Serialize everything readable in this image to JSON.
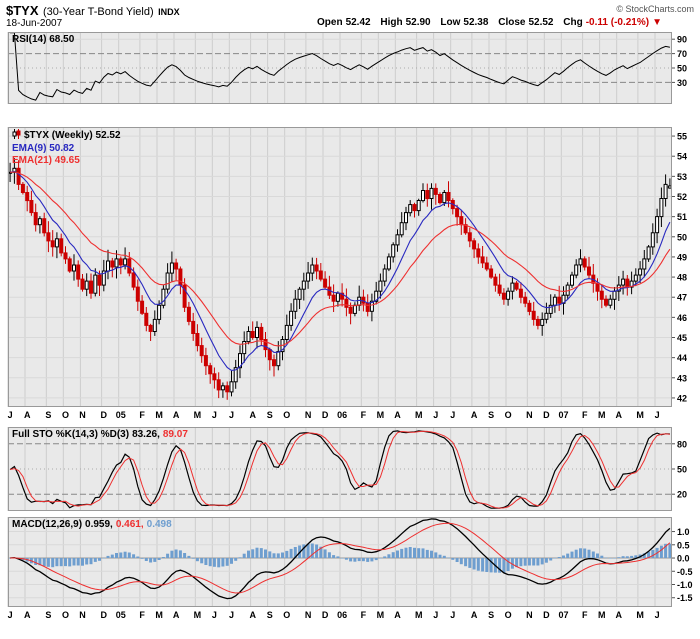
{
  "header": {
    "symbol": "$TYX",
    "name": "(30-Year T-Bond Yield)",
    "exchange": "INDX",
    "date": "18-Jun-2007",
    "quote": {
      "open_label": "Open",
      "open": "52.42",
      "high_label": "High",
      "high": "52.90",
      "low_label": "Low",
      "low": "52.38",
      "close_label": "Close",
      "close": "52.52",
      "chg_label": "Chg",
      "chg": "-0.11 (-0.21%)",
      "chg_dir": "▼"
    },
    "copyright": "© StockCharts.com"
  },
  "panels": {
    "rsi": {
      "label": "RSI(14) 68.50",
      "ticks": [
        90,
        70,
        50,
        30
      ]
    },
    "price": {
      "symbol_label": "$TYX (Weekly) 52.52",
      "ema9_label": "EMA(9) 50.82",
      "ema21_label": "EMA(21) 49.65",
      "ticks": [
        55,
        54,
        53,
        52,
        51,
        50,
        49,
        48,
        47,
        46,
        45,
        44,
        43,
        42
      ]
    },
    "sto": {
      "label": "Full STO %K(14,3) %D(3)",
      "k_value": "83.26,",
      "d_value": "89.07",
      "ticks": [
        80,
        50,
        20
      ]
    },
    "macd": {
      "label": "MACD(12,26,9)",
      "macd_value": "0.959,",
      "signal_value": "0.461,",
      "hist_value": "0.498",
      "ticks": [
        "1.0",
        "0.5",
        "0.0",
        "-0.5",
        "-1.0",
        "-1.5"
      ]
    }
  },
  "colors": {
    "panel_bg": "#e9e9e9",
    "grid_v": "#cdcdcd",
    "grid_h": "#d9d9d9",
    "threshold": "#888888",
    "up": "#000000",
    "down": "#cc0000",
    "ema9": "#2929c0",
    "ema21": "#ee3030",
    "rsi": "#000000",
    "sto_k": "#000000",
    "sto_d": "#ee3030",
    "macd_line": "#000000",
    "macd_signal": "#ee3030",
    "hist": "#6e9ecf",
    "negative": "#cc0000",
    "copyright_color": "#555555"
  },
  "chart_data": {
    "type": "candlestick",
    "title": "$TYX (30-Year T-Bond Yield) INDX",
    "frequency": "weekly",
    "x_month_labels": [
      "J",
      "A",
      "S",
      "O",
      "N",
      "D",
      "05",
      "F",
      "M",
      "A",
      "M",
      "J",
      "J",
      "A",
      "S",
      "O",
      "N",
      "D",
      "06",
      "F",
      "M",
      "A",
      "M",
      "J",
      "J",
      "A",
      "S",
      "O",
      "N",
      "D",
      "07",
      "F",
      "M",
      "A",
      "M",
      "J"
    ],
    "x_month_positions": [
      0,
      4,
      9,
      13,
      17,
      22,
      26,
      31,
      35,
      39,
      44,
      48,
      52,
      57,
      61,
      65,
      70,
      74,
      78,
      83,
      87,
      91,
      96,
      100,
      104,
      109,
      113,
      117,
      122,
      126,
      130,
      135,
      139,
      143,
      148,
      152
    ],
    "closes": [
      53.2,
      53.4,
      52.6,
      52.2,
      51.8,
      51.2,
      50.6,
      50.9,
      50.2,
      49.8,
      49.5,
      49.9,
      49.2,
      48.9,
      48.3,
      48.6,
      47.9,
      47.4,
      47.8,
      47.2,
      48.1,
      47.6,
      48.3,
      48.8,
      48.5,
      48.9,
      48.6,
      48.9,
      48.2,
      47.5,
      46.8,
      46.2,
      45.6,
      45.3,
      45.9,
      46.6,
      47.4,
      48.2,
      48.7,
      48.4,
      47.6,
      46.5,
      45.8,
      45.2,
      44.6,
      44.1,
      43.6,
      43.2,
      42.9,
      42.4,
      42.6,
      42.3,
      42.8,
      43.5,
      44.2,
      44.8,
      45.3,
      45.0,
      45.5,
      44.9,
      44.4,
      43.9,
      43.6,
      44.3,
      44.9,
      45.6,
      46.3,
      46.9,
      47.4,
      47.8,
      48.2,
      48.6,
      48.3,
      47.9,
      47.5,
      47.1,
      46.8,
      47.2,
      46.9,
      46.5,
      46.2,
      46.6,
      47.0,
      46.7,
      46.3,
      46.8,
      47.3,
      47.8,
      48.4,
      49.0,
      49.6,
      50.1,
      50.7,
      51.2,
      51.6,
      51.3,
      51.8,
      52.3,
      51.9,
      52.4,
      52.1,
      51.7,
      52.2,
      51.8,
      51.4,
      51.0,
      50.6,
      50.2,
      49.8,
      49.4,
      49.0,
      48.7,
      48.4,
      48.0,
      47.6,
      47.2,
      46.9,
      47.3,
      47.7,
      47.4,
      47.0,
      46.7,
      46.3,
      45.9,
      45.6,
      45.9,
      46.2,
      46.6,
      47.0,
      46.7,
      47.1,
      47.6,
      48.1,
      48.6,
      48.9,
      48.5,
      48.1,
      47.7,
      47.3,
      46.9,
      46.6,
      46.9,
      47.3,
      47.6,
      47.9,
      47.5,
      47.8,
      48.1,
      48.4,
      48.9,
      49.5,
      50.2,
      51.0,
      51.9,
      52.6,
      52.52
    ],
    "last_ohlc": {
      "open": 52.42,
      "high": 52.9,
      "low": 52.38,
      "close": 52.52
    },
    "price_axis": {
      "min": 41.55,
      "max": 55.45,
      "ticks": [
        42,
        43,
        44,
        45,
        46,
        47,
        48,
        49,
        50,
        51,
        52,
        53,
        54,
        55
      ]
    },
    "indicators": {
      "rsi": {
        "period": 14,
        "last": 68.5,
        "axis_ticks": [
          90,
          70,
          50,
          30
        ]
      },
      "ema": [
        {
          "period": 9,
          "last": 50.82
        },
        {
          "period": 21,
          "last": 49.65
        }
      ],
      "full_sto": {
        "k_params": [
          14,
          3
        ],
        "d_param": 3,
        "last_k": 83.26,
        "last_d": 89.07,
        "axis_ticks": [
          80,
          50,
          20
        ]
      },
      "macd": {
        "params": [
          12,
          26,
          9
        ],
        "last_macd": 0.959,
        "last_signal": 0.461,
        "last_hist": 0.498,
        "axis_ticks": [
          1.0,
          0.5,
          0.0,
          -0.5,
          -1.0,
          -1.5
        ]
      }
    }
  }
}
